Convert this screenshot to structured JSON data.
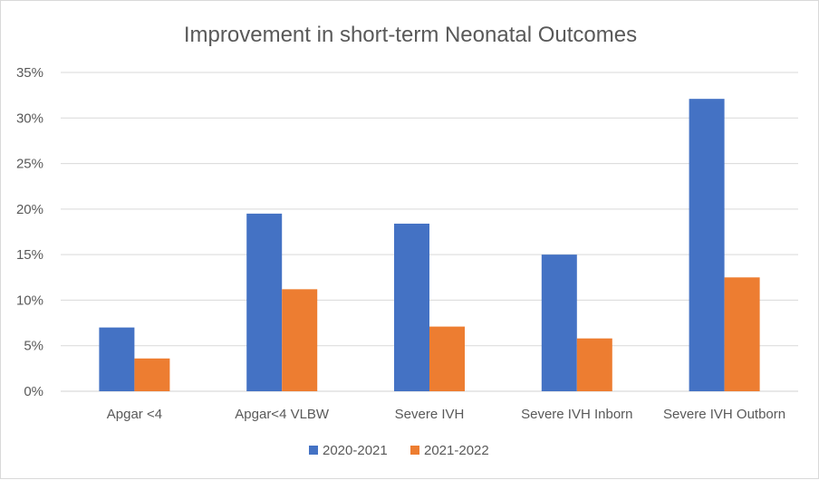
{
  "chart_data": {
    "type": "bar",
    "title": "Improvement  in short-term Neonatal Outcomes",
    "xlabel": "",
    "ylabel": "",
    "ylim": [
      0,
      35
    ],
    "yticks": [
      "0%",
      "5%",
      "10%",
      "15%",
      "20%",
      "25%",
      "30%",
      "35%"
    ],
    "categories": [
      "Apgar <4",
      "Apgar<4 VLBW",
      "Severe IVH",
      "Severe IVH Inborn",
      "Severe IVH Outborn"
    ],
    "series": [
      {
        "name": "2020-2021",
        "color": "#4472c4",
        "values": [
          7.0,
          19.5,
          18.4,
          15.0,
          32.1
        ]
      },
      {
        "name": "2021-2022",
        "color": "#ed7d31",
        "values": [
          3.6,
          11.2,
          7.1,
          5.8,
          12.5
        ]
      }
    ],
    "grid": true,
    "legend_position": "bottom"
  }
}
